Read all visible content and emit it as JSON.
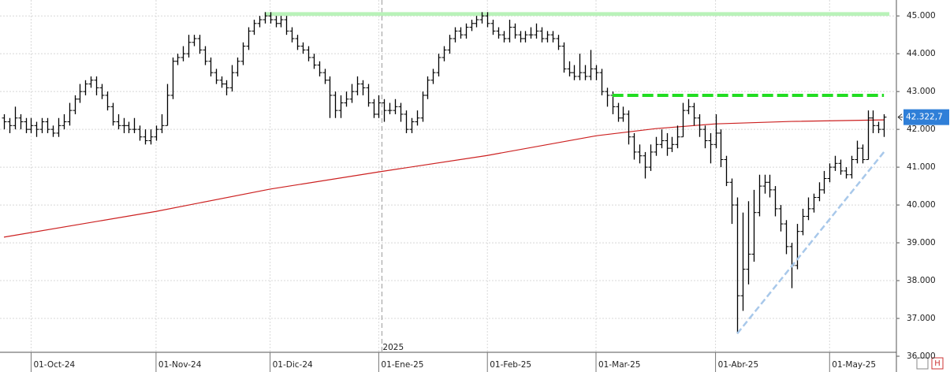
{
  "chart_data": {
    "type": "ohlc",
    "year_label": "2025",
    "last_price": {
      "value": 42322.7,
      "label": "42.322,7"
    },
    "categories": [
      null,
      null,
      null,
      null,
      null,
      "01-Oct-24",
      null,
      null,
      null,
      null,
      null,
      null,
      null,
      null,
      null,
      null,
      null,
      null,
      null,
      null,
      null,
      null,
      null,
      null,
      null,
      null,
      null,
      null,
      "01-Nov-24",
      null,
      null,
      null,
      null,
      null,
      null,
      null,
      null,
      null,
      null,
      null,
      null,
      null,
      null,
      null,
      null,
      null,
      null,
      null,
      null,
      "01-Dic-24",
      null,
      null,
      null,
      null,
      null,
      null,
      null,
      null,
      null,
      null,
      null,
      null,
      null,
      null,
      null,
      null,
      null,
      null,
      null,
      "01-Ene-25",
      null,
      null,
      null,
      null,
      null,
      null,
      null,
      null,
      null,
      null,
      null,
      null,
      null,
      null,
      null,
      null,
      null,
      null,
      null,
      "01-Feb-25",
      null,
      null,
      null,
      null,
      null,
      null,
      null,
      null,
      null,
      null,
      null,
      null,
      null,
      null,
      null,
      null,
      null,
      null,
      null,
      "01-Mar-25",
      null,
      null,
      null,
      null,
      null,
      null,
      null,
      null,
      null,
      null,
      null,
      null,
      null,
      null,
      null,
      null,
      null,
      null,
      null,
      null,
      null,
      "01-Abr-25",
      null,
      null,
      null,
      null,
      null,
      null,
      null,
      null,
      null,
      null,
      null,
      null,
      null,
      null,
      null,
      null,
      null,
      null,
      null,
      null,
      "01-May-25",
      null,
      null,
      null,
      null,
      null,
      null,
      null,
      null,
      null,
      null
    ],
    "bars": [
      [
        42300,
        42400,
        42000,
        42200
      ],
      [
        42200,
        42300,
        41900,
        42100
      ],
      [
        42100,
        42600,
        42000,
        42300
      ],
      [
        42300,
        42400,
        42000,
        42200
      ],
      [
        42200,
        42300,
        41900,
        42000
      ],
      [
        42000,
        42300,
        41900,
        42100
      ],
      [
        42100,
        42200,
        41800,
        42000
      ],
      [
        42000,
        42300,
        41900,
        42200
      ],
      [
        42200,
        42300,
        41900,
        42000
      ],
      [
        42000,
        42100,
        41800,
        41900
      ],
      [
        41900,
        42300,
        41800,
        42100
      ],
      [
        42100,
        42400,
        42000,
        42200
      ],
      [
        42200,
        42700,
        42100,
        42500
      ],
      [
        42500,
        42900,
        42400,
        42800
      ],
      [
        42800,
        43200,
        42700,
        43000
      ],
      [
        43000,
        43300,
        42900,
        43200
      ],
      [
        43200,
        43400,
        43100,
        43300
      ],
      [
        43300,
        43400,
        42900,
        43100
      ],
      [
        43100,
        43200,
        42800,
        42900
      ],
      [
        42900,
        43000,
        42500,
        42600
      ],
      [
        42600,
        42700,
        42100,
        42200
      ],
      [
        42200,
        42400,
        42000,
        42100
      ],
      [
        42100,
        42300,
        41900,
        42100
      ],
      [
        42100,
        42200,
        41900,
        42000
      ],
      [
        42000,
        42300,
        41900,
        42000
      ],
      [
        42000,
        42100,
        41700,
        41800
      ],
      [
        41800,
        42000,
        41600,
        41700
      ],
      [
        41700,
        42000,
        41600,
        41800
      ],
      [
        41800,
        42100,
        41700,
        42000
      ],
      [
        42000,
        42400,
        41900,
        42100
      ],
      [
        42100,
        43200,
        42100,
        42900
      ],
      [
        42900,
        43900,
        42800,
        43800
      ],
      [
        43800,
        44000,
        43700,
        43900
      ],
      [
        43900,
        44200,
        43800,
        44000
      ],
      [
        44000,
        44500,
        43900,
        44300
      ],
      [
        44300,
        44500,
        44200,
        44400
      ],
      [
        44400,
        44500,
        44000,
        44100
      ],
      [
        44100,
        44200,
        43700,
        43800
      ],
      [
        43800,
        43900,
        43400,
        43500
      ],
      [
        43500,
        43600,
        43200,
        43300
      ],
      [
        43300,
        43400,
        43100,
        43200
      ],
      [
        43200,
        43300,
        42900,
        43100
      ],
      [
        43100,
        43700,
        43000,
        43500
      ],
      [
        43500,
        43900,
        43400,
        43800
      ],
      [
        43800,
        44300,
        43700,
        44200
      ],
      [
        44200,
        44700,
        44100,
        44600
      ],
      [
        44600,
        44900,
        44500,
        44800
      ],
      [
        44800,
        45000,
        44700,
        44900
      ],
      [
        44900,
        45100,
        44800,
        45000
      ],
      [
        45000,
        45100,
        44800,
        44900
      ],
      [
        44900,
        45000,
        44700,
        44800
      ],
      [
        44800,
        45000,
        44700,
        44900
      ],
      [
        44900,
        45000,
        44500,
        44600
      ],
      [
        44600,
        44700,
        44300,
        44400
      ],
      [
        44400,
        44500,
        44100,
        44200
      ],
      [
        44200,
        44300,
        44000,
        44100
      ],
      [
        44100,
        44200,
        43800,
        43900
      ],
      [
        43900,
        44000,
        43600,
        43700
      ],
      [
        43700,
        43800,
        43400,
        43500
      ],
      [
        43500,
        43600,
        43200,
        43300
      ],
      [
        43300,
        43400,
        42300,
        42900
      ],
      [
        42900,
        43000,
        42300,
        42500
      ],
      [
        42500,
        42900,
        42300,
        42700
      ],
      [
        42700,
        43000,
        42600,
        42800
      ],
      [
        42800,
        43200,
        42700,
        43000
      ],
      [
        43000,
        43400,
        42900,
        43200
      ],
      [
        43200,
        43300,
        42900,
        43100
      ],
      [
        43100,
        43200,
        42600,
        42700
      ],
      [
        42700,
        42800,
        42300,
        42400
      ],
      [
        42400,
        42900,
        42300,
        42700
      ],
      [
        42700,
        42800,
        42200,
        42500
      ],
      [
        42500,
        42700,
        42400,
        42500
      ],
      [
        42500,
        42800,
        42400,
        42600
      ],
      [
        42600,
        42700,
        42200,
        42400
      ],
      [
        42400,
        42500,
        41900,
        42000
      ],
      [
        42000,
        42300,
        41900,
        42200
      ],
      [
        42200,
        42500,
        42100,
        42300
      ],
      [
        42300,
        43000,
        42200,
        42900
      ],
      [
        42900,
        43400,
        42800,
        43300
      ],
      [
        43300,
        43600,
        43200,
        43500
      ],
      [
        43500,
        44000,
        43400,
        43900
      ],
      [
        43900,
        44200,
        43800,
        44100
      ],
      [
        44100,
        44500,
        44000,
        44400
      ],
      [
        44400,
        44700,
        44300,
        44600
      ],
      [
        44600,
        44700,
        44400,
        44500
      ],
      [
        44500,
        44800,
        44400,
        44700
      ],
      [
        44700,
        44900,
        44600,
        44800
      ],
      [
        44800,
        45000,
        44700,
        44900
      ],
      [
        44900,
        45100,
        44800,
        45000
      ],
      [
        45000,
        45100,
        44700,
        44800
      ],
      [
        44800,
        44900,
        44500,
        44600
      ],
      [
        44600,
        44700,
        44400,
        44500
      ],
      [
        44500,
        44600,
        44300,
        44400
      ],
      [
        44400,
        44900,
        44300,
        44700
      ],
      [
        44700,
        44800,
        44400,
        44500
      ],
      [
        44500,
        44600,
        44300,
        44400
      ],
      [
        44400,
        44600,
        44300,
        44500
      ],
      [
        44500,
        44700,
        44400,
        44500
      ],
      [
        44500,
        44800,
        44400,
        44600
      ],
      [
        44600,
        44700,
        44300,
        44400
      ],
      [
        44400,
        44600,
        44300,
        44500
      ],
      [
        44500,
        44600,
        44300,
        44400
      ],
      [
        44400,
        44500,
        44100,
        44200
      ],
      [
        44200,
        44300,
        43500,
        43600
      ],
      [
        43600,
        43800,
        43400,
        43500
      ],
      [
        43500,
        43700,
        43300,
        43400
      ],
      [
        43400,
        44000,
        43300,
        43500
      ],
      [
        43500,
        43700,
        43300,
        43400
      ],
      [
        43400,
        44100,
        43300,
        43600
      ],
      [
        43600,
        43700,
        43300,
        43500
      ],
      [
        43500,
        43600,
        42900,
        43000
      ],
      [
        43000,
        43100,
        42600,
        42900
      ],
      [
        42900,
        43000,
        42400,
        42600
      ],
      [
        42600,
        42700,
        42200,
        42300
      ],
      [
        42300,
        42600,
        42200,
        42400
      ],
      [
        42400,
        42500,
        41600,
        41800
      ],
      [
        41800,
        41900,
        41200,
        41400
      ],
      [
        41400,
        41600,
        41100,
        41300
      ],
      [
        41300,
        41400,
        40700,
        41000
      ],
      [
        41000,
        41600,
        40900,
        41400
      ],
      [
        41400,
        41800,
        41300,
        41600
      ],
      [
        41600,
        42000,
        41500,
        41700
      ],
      [
        41700,
        41900,
        41300,
        41500
      ],
      [
        41500,
        41800,
        41400,
        41600
      ],
      [
        41600,
        42100,
        41500,
        41800
      ],
      [
        41800,
        42700,
        41800,
        42500
      ],
      [
        42500,
        42800,
        42400,
        42600
      ],
      [
        42600,
        42700,
        42100,
        42300
      ],
      [
        42300,
        42400,
        41800,
        42000
      ],
      [
        42000,
        42100,
        41500,
        41700
      ],
      [
        41700,
        41900,
        41100,
        41600
      ],
      [
        41600,
        42400,
        41500,
        41900
      ],
      [
        41900,
        42000,
        41000,
        41200
      ],
      [
        41200,
        41300,
        40500,
        40600
      ],
      [
        40600,
        40700,
        39500,
        40000
      ],
      [
        40000,
        40200,
        36600,
        37600
      ],
      [
        37600,
        39800,
        37200,
        38300
      ],
      [
        38300,
        40100,
        37900,
        38700
      ],
      [
        38700,
        40400,
        38500,
        39800
      ],
      [
        39800,
        40800,
        39700,
        40500
      ],
      [
        40500,
        40800,
        40300,
        40600
      ],
      [
        40600,
        40800,
        40200,
        40400
      ],
      [
        40400,
        40500,
        39700,
        39900
      ],
      [
        39900,
        40000,
        39300,
        39500
      ],
      [
        39500,
        39600,
        38700,
        38900
      ],
      [
        38900,
        39000,
        37800,
        38400
      ],
      [
        38400,
        39500,
        38300,
        39300
      ],
      [
        39300,
        39900,
        39200,
        39700
      ],
      [
        39700,
        40200,
        39600,
        39900
      ],
      [
        39900,
        40300,
        39800,
        40200
      ],
      [
        40200,
        40600,
        40100,
        40400
      ],
      [
        40400,
        40900,
        40300,
        40700
      ],
      [
        40700,
        41100,
        40600,
        41000
      ],
      [
        41000,
        41300,
        40900,
        41100
      ],
      [
        41100,
        41200,
        40800,
        40900
      ],
      [
        40900,
        41000,
        40700,
        40800
      ],
      [
        40800,
        41300,
        40700,
        41200
      ],
      [
        41200,
        41700,
        41100,
        41500
      ],
      [
        41500,
        41600,
        41100,
        41200
      ],
      [
        41200,
        42500,
        41200,
        42300
      ],
      [
        42300,
        42500,
        41900,
        42100
      ],
      [
        42100,
        42200,
        41900,
        42000
      ],
      [
        42000,
        42400,
        41800,
        42322.7
      ]
    ],
    "bar_color": "#000000",
    "moving_average": {
      "color": "#cc2020",
      "x": [
        0,
        28,
        49,
        69,
        89,
        109,
        120,
        131,
        145,
        162
      ],
      "values": [
        39150,
        39830,
        40420,
        40875,
        41310,
        41830,
        42020,
        42145,
        42210,
        42250
      ]
    },
    "band": {
      "color": "#b9f2b9",
      "x": [
        48,
        163
      ],
      "y": [
        45000,
        45100
      ]
    },
    "resistance": {
      "color": "#22dd22",
      "x": [
        112,
        162
      ],
      "value": 42900
    },
    "trend_line": {
      "color": "#a8c8ea",
      "x": [
        135,
        162
      ],
      "values": [
        36600,
        41400
      ]
    },
    "ylim": [
      36000,
      45400
    ],
    "yticks": [
      {
        "value": 36000,
        "label": "36.000"
      },
      {
        "value": 37000,
        "label": "37.000"
      },
      {
        "value": 38000,
        "label": "38.000"
      },
      {
        "value": 39000,
        "label": "39.000"
      },
      {
        "value": 40000,
        "label": "40.000"
      },
      {
        "value": 41000,
        "label": "41.000"
      },
      {
        "value": 42000,
        "label": "42.000"
      },
      {
        "value": 43000,
        "label": "43.000"
      },
      {
        "value": 44000,
        "label": "44.000"
      },
      {
        "value": 45000,
        "label": "45.000"
      }
    ],
    "grid": true
  }
}
